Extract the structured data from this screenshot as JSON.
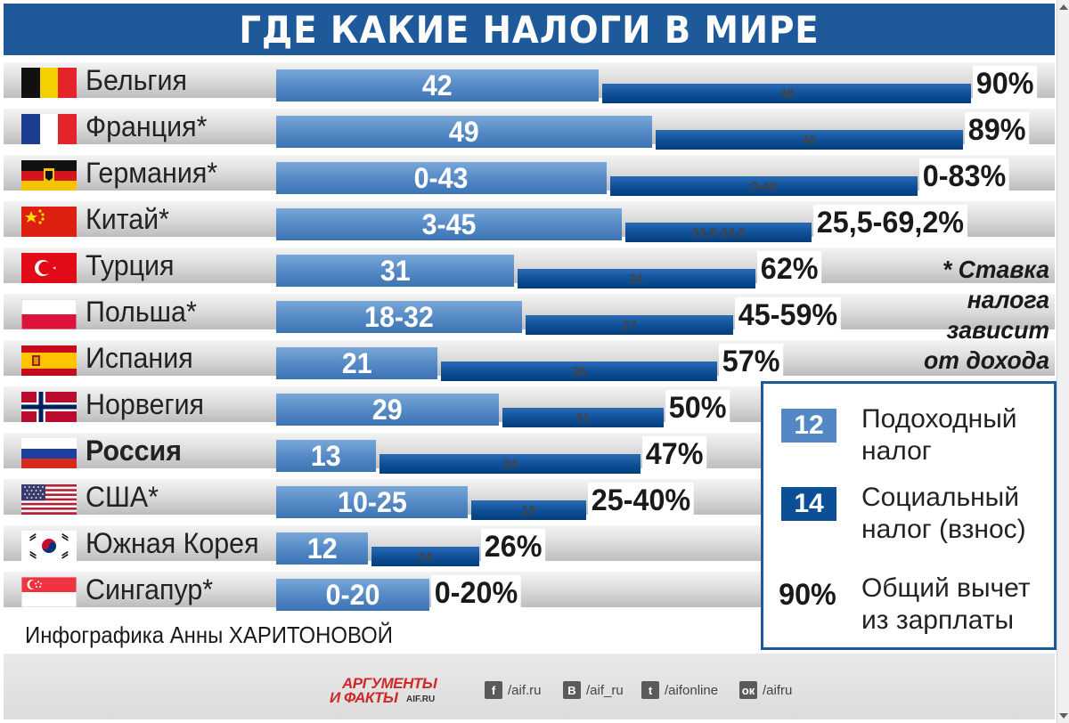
{
  "title": "ГДЕ КАКИЕ НАЛОГИ В МИРЕ",
  "colors": {
    "header": "#1e5a9a",
    "income_tax": "#5388c4",
    "social_tax": "#0d4f97"
  },
  "chart_data": {
    "type": "bar",
    "stacked": true,
    "orientation": "horizontal",
    "title": "ГДЕ КАКИЕ НАЛОГИ В МИРЕ",
    "categories": [
      "Бельгия",
      "Франция*",
      "Германия*",
      "Китай*",
      "Турция",
      "Польша*",
      "Испания",
      "Норвегия",
      "Россия",
      "США*",
      "Южная Корея",
      "Сингапур*"
    ],
    "rows": [
      {
        "country": "Бельгия",
        "flag": "belgium-flag",
        "income_label": "42",
        "income": 42,
        "social_label": "48",
        "social": 48,
        "total_label": "90%",
        "total": 90
      },
      {
        "country": "Франция*",
        "flag": "france-flag",
        "income_label": "49",
        "income": 49,
        "social_label": "40",
        "social": 40,
        "total_label": "89%",
        "total": 89
      },
      {
        "country": "Германия*",
        "flag": "germany-flag",
        "income_label": "0-43",
        "income": 43,
        "social_label": "0-40",
        "social": 40,
        "total_label": "0-83%",
        "total": 83
      },
      {
        "country": "Китай*",
        "flag": "china-flag",
        "income_label": "3-45",
        "income": 45,
        "social_label": "22,5-24,2",
        "social": 24.2,
        "total_label": "25,5-69,2%",
        "total": 69.2
      },
      {
        "country": "Турция",
        "flag": "turkey-flag",
        "income_label": "31",
        "income": 31,
        "social_label": "31",
        "social": 31,
        "total_label": "62%",
        "total": 62
      },
      {
        "country": "Польша*",
        "flag": "poland-flag",
        "income_label": "18-32",
        "income": 32,
        "social_label": "27",
        "social": 27,
        "total_label": "45-59%",
        "total": 59
      },
      {
        "country": "Испания",
        "flag": "spain-flag",
        "income_label": "21",
        "income": 21,
        "social_label": "36",
        "social": 36,
        "total_label": "57%",
        "total": 57
      },
      {
        "country": "Норвегия",
        "flag": "norway-flag",
        "income_label": "29",
        "income": 29,
        "social_label": "21",
        "social": 21,
        "total_label": "50%",
        "total": 50
      },
      {
        "country": "Россия",
        "flag": "russia-flag",
        "bold": true,
        "income_label": "13",
        "income": 13,
        "social_label": "34",
        "social": 34,
        "total_label": "47%",
        "total": 47
      },
      {
        "country": "США*",
        "flag": "usa-flag",
        "income_label": "10-25",
        "income": 25,
        "social_label": "15",
        "social": 15,
        "total_label": "25-40%",
        "total": 40
      },
      {
        "country": "Южная Корея",
        "flag": "south-korea-flag",
        "income_label": "12",
        "income": 12,
        "social_label": "14",
        "social": 14,
        "total_label": "26%",
        "total": 26
      },
      {
        "country": "Сингапур*",
        "flag": "singapore-flag",
        "income_label": "0-20",
        "income": 20,
        "social_label": "",
        "social": 0,
        "total_label": "0-20%",
        "total": 20
      }
    ],
    "legend": [
      {
        "swatch": "12",
        "label": "Подоходный налог",
        "kind": "income"
      },
      {
        "swatch": "14",
        "label": "Социальный налог (взнос)",
        "kind": "social"
      },
      {
        "swatch": "90%",
        "label": "Общий вычет из зарплаты",
        "kind": "total"
      }
    ],
    "legend_position": "bottom-right"
  },
  "note_lines": [
    "* Ставка",
    "налога",
    "зависит",
    "от дохода"
  ],
  "credit": "Инфографика Анны ХАРИТОНОВОЙ",
  "footer": {
    "logo_line1": "АРГУМЕНТЫ",
    "logo_line2": "И ФАКТЫ",
    "logo_domain": "AIF.RU",
    "social": [
      {
        "icon": "facebook-icon",
        "glyph": "f",
        "handle": "/aif.ru"
      },
      {
        "icon": "vk-icon",
        "glyph": "В",
        "handle": "/aif_ru"
      },
      {
        "icon": "twitter-icon",
        "glyph": "t",
        "handle": "/aifonline"
      },
      {
        "icon": "odnoklassniki-icon",
        "glyph": "ок",
        "handle": "/aifru"
      }
    ]
  }
}
